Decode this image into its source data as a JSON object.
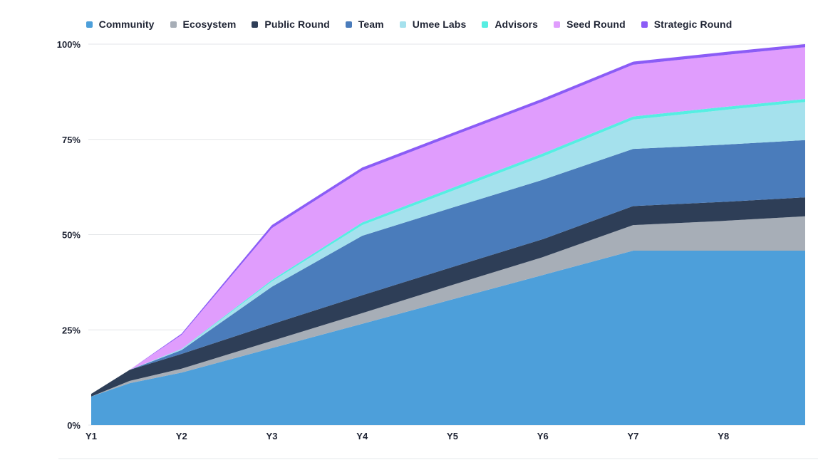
{
  "chart_data": {
    "type": "area",
    "stacked": true,
    "title": "",
    "xlabel": "",
    "ylabel": "",
    "x": [
      "Y1",
      "Y1.5",
      "Y2",
      "Y3",
      "Y4",
      "Y5",
      "Y6",
      "Y7",
      "Y8",
      "Y9"
    ],
    "x_tick_labels": [
      "Y1",
      "Y2",
      "Y3",
      "Y4",
      "Y5",
      "Y6",
      "Y7",
      "Y8"
    ],
    "y_tick_labels": [
      "0%",
      "25%",
      "50%",
      "75%",
      "100%"
    ],
    "ylim": [
      0,
      100
    ],
    "grid": true,
    "legend_position": "top",
    "series": [
      {
        "name": "Community",
        "color": "#4d9fda",
        "values": [
          7.5,
          11.0,
          13.8,
          20.2,
          26.6,
          33.0,
          39.4,
          45.8,
          45.8,
          45.8
        ]
      },
      {
        "name": "Ecosystem",
        "color": "#a7aeb7",
        "values": [
          0.0,
          0.6,
          1.0,
          1.9,
          2.8,
          3.8,
          4.7,
          6.7,
          7.8,
          9.0
        ]
      },
      {
        "name": "Public Round",
        "color": "#2e3e57",
        "values": [
          0.7,
          2.9,
          3.9,
          4.4,
          4.7,
          4.7,
          4.7,
          5.0,
          5.0,
          5.0
        ]
      },
      {
        "name": "Team",
        "color": "#4a7cbb",
        "values": [
          0.0,
          0.0,
          1.0,
          9.8,
          15.6,
          15.6,
          15.6,
          15.0,
          15.0,
          15.0
        ]
      },
      {
        "name": "Umee Labs",
        "color": "#a5e1ed",
        "values": [
          0.0,
          0.0,
          0.2,
          1.4,
          2.8,
          4.4,
          6.1,
          7.7,
          9.1,
          10.0
        ]
      },
      {
        "name": "Advisors",
        "color": "#56eee2",
        "values": [
          0.0,
          0.0,
          0.1,
          0.4,
          0.7,
          0.8,
          0.8,
          0.8,
          0.8,
          0.8
        ]
      },
      {
        "name": "Seed Round",
        "color": "#e09dfd",
        "values": [
          0.0,
          0.0,
          3.7,
          13.6,
          13.6,
          13.6,
          13.6,
          13.6,
          13.6,
          13.6
        ]
      },
      {
        "name": "Strategic Round",
        "color": "#8b5cf6",
        "values": [
          0.0,
          0.0,
          0.3,
          0.8,
          0.8,
          0.8,
          0.8,
          0.8,
          0.8,
          0.8
        ]
      }
    ]
  }
}
